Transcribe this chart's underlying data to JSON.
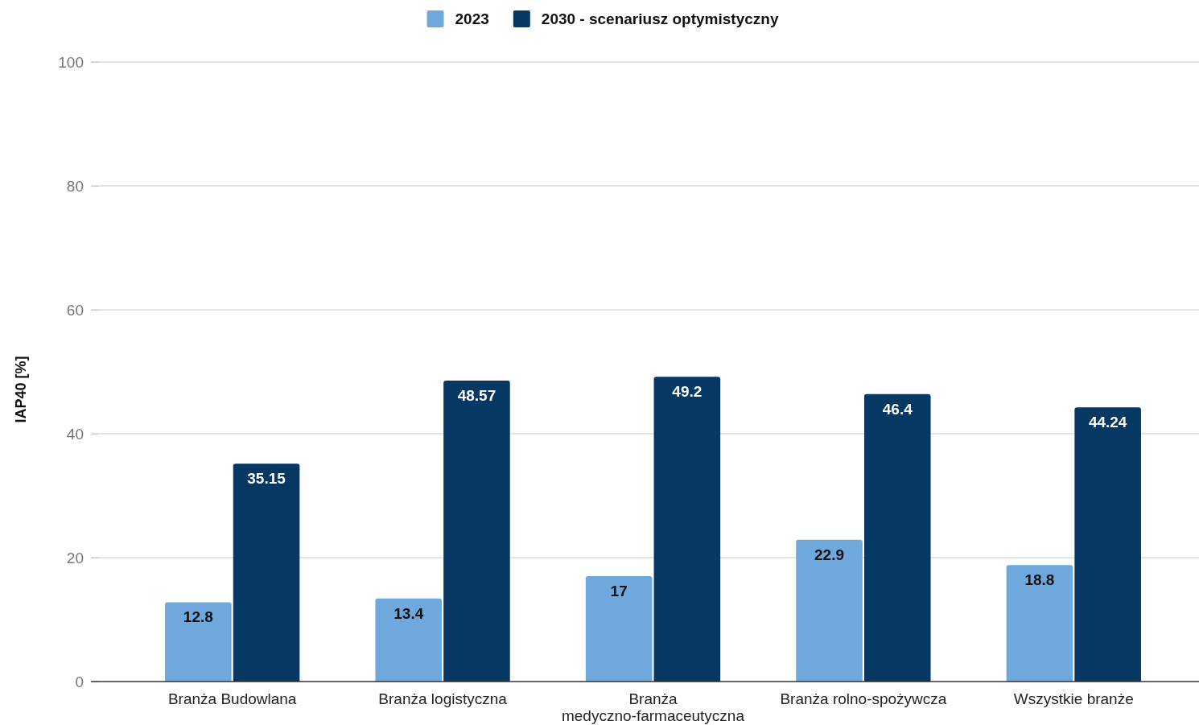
{
  "chart_data": {
    "type": "bar",
    "ylabel": "IAP40 [%]",
    "categories": [
      "Branża Budowlana",
      "Branża logistyczna",
      "Branża medyczno-farmaceutyczna",
      "Branża rolno-spożywcza",
      "Wszystkie branże"
    ],
    "series": [
      {
        "name": "2023",
        "color": "#6fa8dc",
        "values": [
          12.8,
          13.4,
          17,
          22.9,
          18.8
        ]
      },
      {
        "name": "2030 - scenariusz optymistyczny",
        "color": "#073763",
        "values": [
          35.15,
          48.57,
          49.2,
          46.4,
          44.24
        ]
      }
    ],
    "ylim": [
      0,
      100
    ],
    "yticks": [
      0,
      20,
      40,
      60,
      80,
      100
    ],
    "grid": "y",
    "legend": "top",
    "data_labels": true
  }
}
